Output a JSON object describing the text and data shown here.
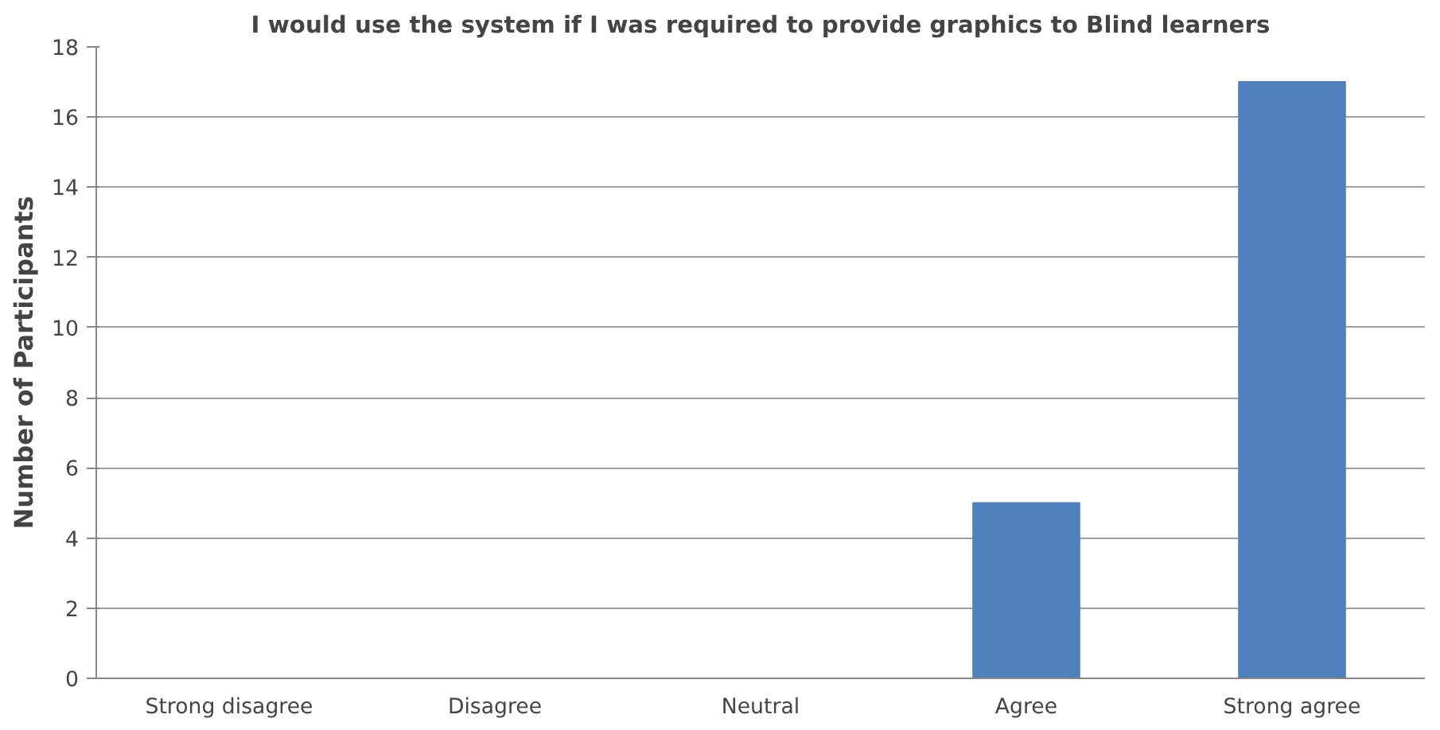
{
  "chart_data": {
    "type": "bar",
    "title": "I would use the system if I was required to provide graphics to Blind learners",
    "ylabel": "Number of Participants",
    "categories": [
      "Strong disagree",
      "Disagree",
      "Neutral",
      "Agree",
      "Strong agree"
    ],
    "values": [
      0,
      0,
      0,
      5,
      17
    ],
    "color": "#4f81bd",
    "ylim": [
      0,
      18
    ],
    "yticks": [
      0,
      2,
      4,
      6,
      8,
      10,
      12,
      14,
      16,
      18
    ],
    "grid": "y"
  }
}
